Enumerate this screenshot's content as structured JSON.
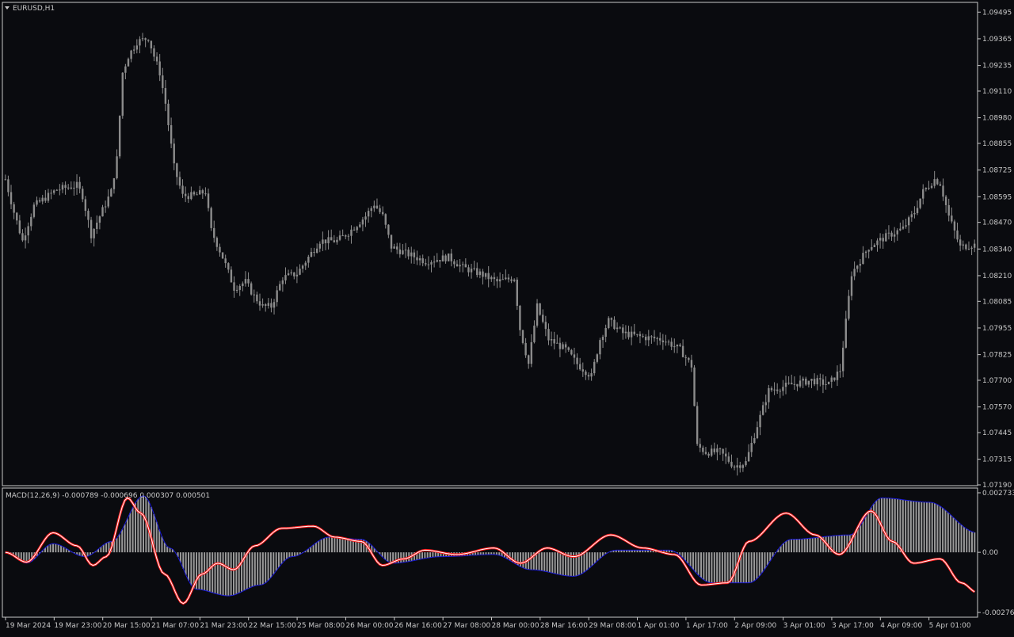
{
  "symbol_label": "EURUSD,H1",
  "macd_label": "MACD(12,26,9) -0.000789 -0.000696 0.000307 0.000501",
  "colors": {
    "background": "#0a0b0f",
    "frame": "#c8c8c8",
    "text": "#c8c8c8",
    "candle": "#8c8c8c",
    "histogram": "#9a9a9a",
    "signal": "#1a1ad8",
    "macd_line": "#ffffff",
    "highlight": "#ff1a1a"
  },
  "icons": {
    "menu": "triangle-down-icon"
  },
  "chart_data": [
    {
      "type": "candlestick",
      "title": "EURUSD,H1",
      "ylim": [
        1.0719,
        1.095
      ],
      "yticks": [
        "1.09495",
        "1.09365",
        "1.09235",
        "1.09110",
        "1.08980",
        "1.08855",
        "1.08725",
        "1.08595",
        "1.08470",
        "1.08340",
        "1.08210",
        "1.08085",
        "1.07955",
        "1.07825",
        "1.07700",
        "1.07570",
        "1.07445",
        "1.07315",
        "1.07190"
      ],
      "xticks": [
        "19 Mar 2024",
        "19 Mar 23:00",
        "20 Mar 15:00",
        "21 Mar 07:00",
        "21 Mar 23:00",
        "22 Mar 15:00",
        "25 Mar 08:00",
        "26 Mar 00:00",
        "26 Mar 16:00",
        "27 Mar 08:00",
        "28 Mar 00:00",
        "28 Mar 16:00",
        "29 Mar 08:00",
        "1 Apr 01:00",
        "1 Apr 17:00",
        "2 Apr 09:00",
        "3 Apr 01:00",
        "3 Apr 17:00",
        "4 Apr 09:00",
        "5 Apr 01:00"
      ],
      "anchors": [
        [
          0,
          1.0868
        ],
        [
          3,
          1.0852
        ],
        [
          6,
          1.0838
        ],
        [
          10,
          1.0855
        ],
        [
          18,
          1.0863
        ],
        [
          25,
          1.0865
        ],
        [
          27,
          1.086
        ],
        [
          30,
          1.0841
        ],
        [
          35,
          1.0856
        ],
        [
          37,
          1.0862
        ],
        [
          39,
          1.0878
        ],
        [
          41,
          1.092
        ],
        [
          43,
          1.0928
        ],
        [
          46,
          1.0935
        ],
        [
          50,
          1.0937
        ],
        [
          52,
          1.0928
        ],
        [
          54,
          1.092
        ],
        [
          56,
          1.0905
        ],
        [
          59,
          1.0874
        ],
        [
          62,
          1.086
        ],
        [
          66,
          1.086
        ],
        [
          70,
          1.0862
        ],
        [
          72,
          1.0843
        ],
        [
          76,
          1.083
        ],
        [
          80,
          1.0815
        ],
        [
          84,
          1.0818
        ],
        [
          87,
          1.0811
        ],
        [
          90,
          1.0806
        ],
        [
          93,
          1.0806
        ],
        [
          97,
          1.082
        ],
        [
          102,
          1.0822
        ],
        [
          106,
          1.083
        ],
        [
          110,
          1.0838
        ],
        [
          116,
          1.0838
        ],
        [
          120,
          1.0842
        ],
        [
          126,
          1.085
        ],
        [
          129,
          1.0856
        ],
        [
          132,
          1.085
        ],
        [
          135,
          1.0835
        ],
        [
          140,
          1.0832
        ],
        [
          147,
          1.0828
        ],
        [
          155,
          1.083
        ],
        [
          160,
          1.0825
        ],
        [
          166,
          1.0822
        ],
        [
          172,
          1.0818
        ],
        [
          178,
          1.082
        ],
        [
          180,
          1.0795
        ],
        [
          183,
          1.0778
        ],
        [
          186,
          1.0806
        ],
        [
          190,
          1.079
        ],
        [
          196,
          1.0785
        ],
        [
          200,
          1.0778
        ],
        [
          205,
          1.0772
        ],
        [
          208,
          1.079
        ],
        [
          211,
          1.0799
        ],
        [
          216,
          1.0793
        ],
        [
          223,
          1.0791
        ],
        [
          230,
          1.079
        ],
        [
          236,
          1.0785
        ],
        [
          240,
          1.0777
        ],
        [
          242,
          1.0738
        ],
        [
          245,
          1.0735
        ],
        [
          250,
          1.0735
        ],
        [
          255,
          1.0728
        ],
        [
          259,
          1.073
        ],
        [
          263,
          1.0748
        ],
        [
          267,
          1.0765
        ],
        [
          275,
          1.0768
        ],
        [
          282,
          1.077
        ],
        [
          288,
          1.0768
        ],
        [
          292,
          1.0775
        ],
        [
          296,
          1.0822
        ],
        [
          302,
          1.0835
        ],
        [
          308,
          1.084
        ],
        [
          314,
          1.0844
        ],
        [
          318,
          1.0852
        ],
        [
          321,
          1.0862
        ],
        [
          325,
          1.0868
        ],
        [
          327,
          1.0866
        ],
        [
          330,
          1.085
        ],
        [
          334,
          1.0835
        ],
        [
          338,
          1.0836
        ]
      ],
      "volatility": 0.00045
    },
    {
      "type": "macd",
      "title": "MACD(12,26,9) -0.000789 -0.000696 0.000307 0.000501",
      "ylim": [
        -0.00276,
        0.002733
      ],
      "yticks": [
        "0.002733",
        "0.00",
        "-0.00276"
      ],
      "series_names": [
        "histogram",
        "signal",
        "macd"
      ],
      "macd_points": [
        [
          0,
          0.0
        ],
        [
          8,
          -0.00045
        ],
        [
          18,
          0.0009
        ],
        [
          27,
          0.0003
        ],
        [
          33,
          -0.0006
        ],
        [
          38,
          -0.0002
        ],
        [
          46,
          0.0025
        ],
        [
          51,
          0.0018
        ],
        [
          60,
          -0.001
        ],
        [
          67,
          -0.00235
        ],
        [
          74,
          -0.001
        ],
        [
          80,
          -0.0005
        ],
        [
          86,
          -0.0008
        ],
        [
          94,
          0.0003
        ],
        [
          104,
          0.0011
        ],
        [
          116,
          0.0012
        ],
        [
          124,
          0.0007
        ],
        [
          134,
          0.0005
        ],
        [
          142,
          -0.0006
        ],
        [
          150,
          -0.0003
        ],
        [
          158,
          0.0001
        ],
        [
          170,
          -0.0001
        ],
        [
          184,
          0.0002
        ],
        [
          194,
          -0.0005
        ],
        [
          204,
          0.0002
        ],
        [
          214,
          -0.0002
        ],
        [
          228,
          0.0008
        ],
        [
          240,
          0.0002
        ],
        [
          252,
          -0.0001
        ],
        [
          262,
          -0.0015
        ],
        [
          272,
          -0.0014
        ],
        [
          280,
          0.0005
        ],
        [
          294,
          0.0018
        ],
        [
          305,
          0.0008
        ],
        [
          314,
          -0.0001
        ],
        [
          326,
          0.0019
        ],
        [
          334,
          0.0005
        ],
        [
          342,
          -0.0005
        ],
        [
          352,
          -0.0003
        ],
        [
          360,
          -0.0014
        ],
        [
          366,
          -0.00185
        ]
      ],
      "signal_points": [
        [
          0,
          0.0
        ],
        [
          8,
          -0.0005
        ],
        [
          18,
          0.0004
        ],
        [
          30,
          -0.0002
        ],
        [
          40,
          0.0005
        ],
        [
          52,
          0.0026
        ],
        [
          62,
          0.0002
        ],
        [
          72,
          -0.0017
        ],
        [
          84,
          -0.002
        ],
        [
          96,
          -0.0015
        ],
        [
          108,
          -0.0002
        ],
        [
          122,
          0.0007
        ],
        [
          134,
          0.0006
        ],
        [
          146,
          -0.0005
        ],
        [
          164,
          -0.0002
        ],
        [
          184,
          -0.0001
        ],
        [
          198,
          -0.0008
        ],
        [
          214,
          -0.0011
        ],
        [
          230,
          0.0001
        ],
        [
          250,
          0.0001
        ],
        [
          266,
          -0.0014
        ],
        [
          280,
          -0.0014
        ],
        [
          296,
          0.0006
        ],
        [
          318,
          0.0008
        ],
        [
          330,
          0.0025
        ],
        [
          348,
          0.0023
        ],
        [
          366,
          0.0009
        ]
      ],
      "highlight_note": ""
    }
  ]
}
